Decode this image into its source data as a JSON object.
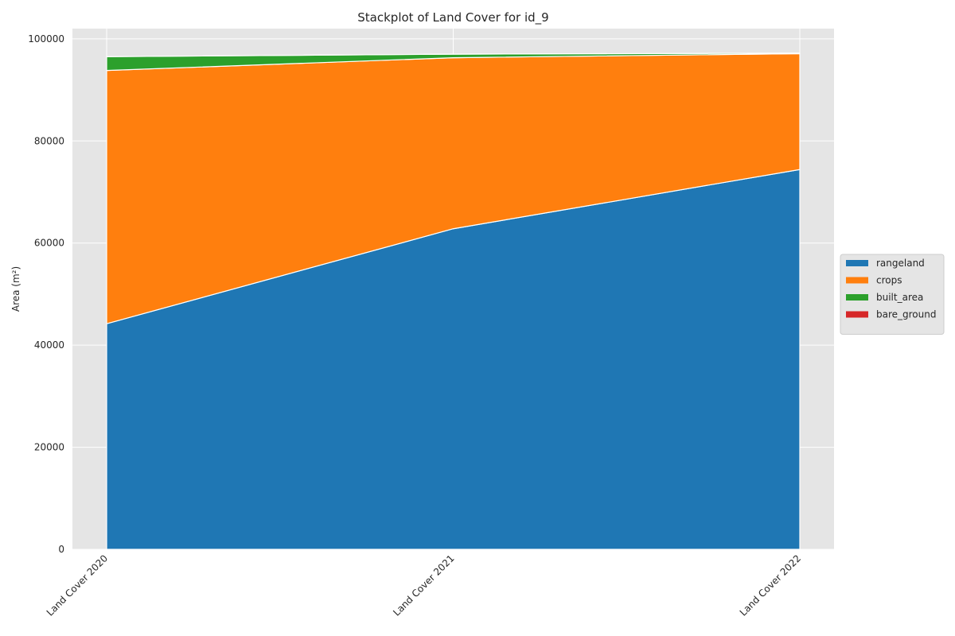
{
  "chart_data": {
    "type": "area",
    "stacked": true,
    "title": "Stackplot of Land Cover for id_9",
    "xlabel": "",
    "ylabel": "Area (m²)",
    "categories": [
      "Land Cover 2020",
      "Land Cover 2021",
      "Land Cover 2022"
    ],
    "ylim": [
      0,
      102000
    ],
    "yticks": [
      0,
      20000,
      40000,
      60000,
      80000,
      100000
    ],
    "grid": true,
    "legend_position": "center-right outside",
    "series": [
      {
        "name": "rangeland",
        "color": "#1f77b4",
        "values": [
          44200,
          62800,
          74400
        ]
      },
      {
        "name": "crops",
        "color": "#ff7f0e",
        "values": [
          49600,
          33500,
          22700
        ]
      },
      {
        "name": "built_area",
        "color": "#2ca02c",
        "values": [
          2700,
          700,
          100
        ]
      },
      {
        "name": "bare_ground",
        "color": "#d62728",
        "values": [
          0,
          0,
          0
        ]
      }
    ]
  }
}
